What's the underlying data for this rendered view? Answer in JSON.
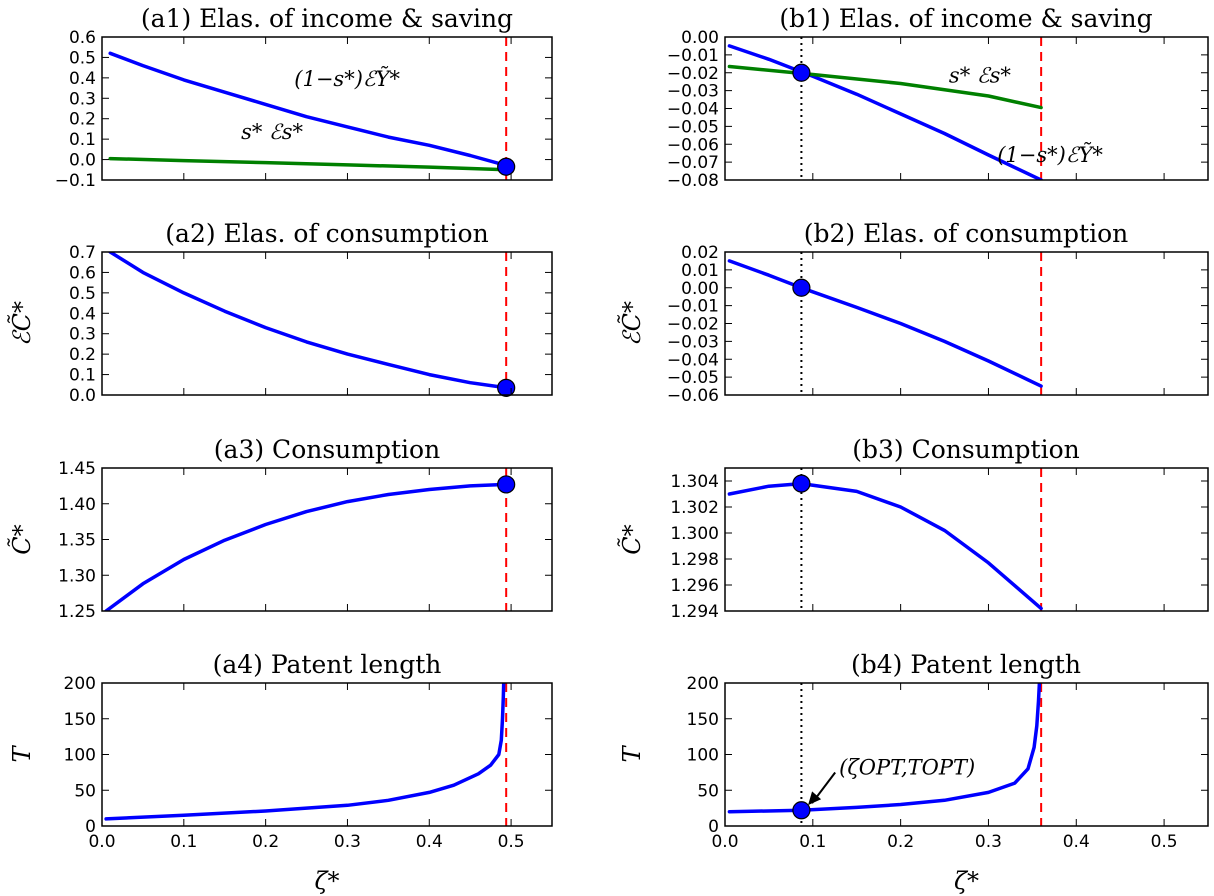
{
  "chart_data": [
    {
      "id": "a1",
      "type": "line",
      "title": "(a1) Elas. of income & saving",
      "xlim": [
        0,
        0.55
      ],
      "ylim": [
        -0.1,
        0.6
      ],
      "xticks": [],
      "yticks": [
        -0.1,
        0.0,
        0.1,
        0.2,
        0.3,
        0.4,
        0.5,
        0.6
      ],
      "ylabel": "",
      "xlabel": "",
      "series": [
        {
          "name": "(1−s*)ℰỸ*",
          "color": "#0000ff",
          "x": [
            0.01,
            0.05,
            0.1,
            0.15,
            0.2,
            0.25,
            0.3,
            0.35,
            0.4,
            0.45,
            0.495
          ],
          "y": [
            0.52,
            0.46,
            0.39,
            0.33,
            0.27,
            0.21,
            0.16,
            0.11,
            0.07,
            0.02,
            -0.03
          ]
        },
        {
          "name": "s* ℰs*",
          "color": "#008000",
          "x": [
            0.01,
            0.1,
            0.2,
            0.3,
            0.4,
            0.495
          ],
          "y": [
            0.005,
            -0.005,
            -0.015,
            -0.026,
            -0.037,
            -0.05
          ]
        }
      ],
      "vline_dashed": 0.494,
      "vline_dotted": null,
      "point": {
        "x": 0.494,
        "y": -0.035
      },
      "annotations": [
        {
          "text": "(1−s*)ℰỸ*",
          "x": 0.235,
          "y": 0.36
        },
        {
          "text": "s* ℰs*",
          "x": 0.17,
          "y": 0.1
        }
      ]
    },
    {
      "id": "b1",
      "type": "line",
      "title": "(b1) Elas. of income & saving",
      "xlim": [
        0,
        0.55
      ],
      "ylim": [
        -0.08,
        0.0
      ],
      "xticks": [],
      "yticks": [
        -0.08,
        -0.07,
        -0.06,
        -0.05,
        -0.04,
        -0.03,
        -0.02,
        -0.01,
        0.0
      ],
      "ylabel": "",
      "xlabel": "",
      "series": [
        {
          "name": "(1−s*)ℰỸ*",
          "color": "#0000ff",
          "x": [
            0.005,
            0.05,
            0.1,
            0.15,
            0.2,
            0.25,
            0.3,
            0.36
          ],
          "y": [
            -0.005,
            -0.0125,
            -0.022,
            -0.032,
            -0.043,
            -0.054,
            -0.066,
            -0.08
          ]
        },
        {
          "name": "s* ℰs*",
          "color": "#008000",
          "x": [
            0.005,
            0.1,
            0.2,
            0.3,
            0.36
          ],
          "y": [
            -0.0165,
            -0.021,
            -0.026,
            -0.033,
            -0.0395
          ]
        }
      ],
      "vline_dashed": 0.36,
      "vline_dotted": 0.087,
      "point": {
        "x": 0.087,
        "y": -0.02
      },
      "annotations": [
        {
          "text": "s* ℰs*",
          "x": 0.255,
          "y": -0.0255
        },
        {
          "text": "(1−s*)ℰỸ*",
          "x": 0.31,
          "y": -0.07
        }
      ]
    },
    {
      "id": "a2",
      "type": "line",
      "title": "(a2) Elas. of consumption",
      "xlim": [
        0,
        0.55
      ],
      "ylim": [
        0.0,
        0.7
      ],
      "xticks": [],
      "yticks": [
        0.0,
        0.1,
        0.2,
        0.3,
        0.4,
        0.5,
        0.6,
        0.7
      ],
      "ylabel": "ℰC̃*",
      "xlabel": "",
      "series": [
        {
          "name": "",
          "color": "#0000ff",
          "x": [
            0.01,
            0.05,
            0.1,
            0.15,
            0.2,
            0.25,
            0.3,
            0.35,
            0.4,
            0.45,
            0.495
          ],
          "y": [
            0.7,
            0.6,
            0.5,
            0.41,
            0.33,
            0.26,
            0.2,
            0.15,
            0.1,
            0.06,
            0.035
          ]
        }
      ],
      "vline_dashed": 0.494,
      "vline_dotted": null,
      "point": {
        "x": 0.494,
        "y": 0.035
      },
      "annotations": []
    },
    {
      "id": "b2",
      "type": "line",
      "title": "(b2) Elas. of consumption",
      "xlim": [
        0,
        0.55
      ],
      "ylim": [
        -0.06,
        0.02
      ],
      "xticks": [],
      "yticks": [
        -0.06,
        -0.05,
        -0.04,
        -0.03,
        -0.02,
        -0.01,
        0.0,
        0.01,
        0.02
      ],
      "ylabel": "ℰC̃*",
      "xlabel": "",
      "series": [
        {
          "name": "",
          "color": "#0000ff",
          "x": [
            0.005,
            0.05,
            0.087,
            0.15,
            0.2,
            0.25,
            0.3,
            0.36
          ],
          "y": [
            0.015,
            0.007,
            0.0,
            -0.011,
            -0.02,
            -0.03,
            -0.041,
            -0.055
          ]
        }
      ],
      "vline_dashed": 0.36,
      "vline_dotted": 0.087,
      "point": {
        "x": 0.087,
        "y": 0.0
      },
      "annotations": []
    },
    {
      "id": "a3",
      "type": "line",
      "title": "(a3) Consumption",
      "xlim": [
        0,
        0.55
      ],
      "ylim": [
        1.25,
        1.45
      ],
      "xticks": [],
      "yticks": [
        1.25,
        1.3,
        1.35,
        1.4,
        1.45
      ],
      "ylabel": "C̃*",
      "xlabel": "",
      "series": [
        {
          "name": "",
          "color": "#0000ff",
          "x": [
            0.005,
            0.05,
            0.1,
            0.15,
            0.2,
            0.25,
            0.3,
            0.35,
            0.4,
            0.45,
            0.494
          ],
          "y": [
            1.25,
            1.288,
            1.322,
            1.349,
            1.371,
            1.389,
            1.403,
            1.413,
            1.42,
            1.425,
            1.427
          ]
        }
      ],
      "vline_dashed": 0.494,
      "vline_dotted": null,
      "point": {
        "x": 0.494,
        "y": 1.427
      },
      "annotations": []
    },
    {
      "id": "b3",
      "type": "line",
      "title": "(b3) Consumption",
      "xlim": [
        0,
        0.55
      ],
      "ylim": [
        1.294,
        1.305
      ],
      "xticks": [],
      "yticks": [
        1.294,
        1.296,
        1.298,
        1.3,
        1.302,
        1.304
      ],
      "ylabel": "C̃*",
      "xlabel": "",
      "series": [
        {
          "name": "",
          "color": "#0000ff",
          "x": [
            0.005,
            0.05,
            0.087,
            0.15,
            0.2,
            0.25,
            0.3,
            0.36
          ],
          "y": [
            1.303,
            1.3036,
            1.3038,
            1.3032,
            1.302,
            1.3002,
            1.2977,
            1.2942
          ]
        }
      ],
      "vline_dashed": 0.36,
      "vline_dotted": 0.087,
      "point": {
        "x": 0.087,
        "y": 1.3038
      },
      "annotations": []
    },
    {
      "id": "a4",
      "type": "line",
      "title": "(a4) Patent length",
      "xlim": [
        0,
        0.55
      ],
      "ylim": [
        0,
        200
      ],
      "xticks": [
        0.0,
        0.1,
        0.2,
        0.3,
        0.4,
        0.5
      ],
      "yticks": [
        0,
        50,
        100,
        150,
        200
      ],
      "ylabel": "T",
      "xlabel": "ζ*",
      "series": [
        {
          "name": "",
          "color": "#0000ff",
          "x": [
            0.005,
            0.1,
            0.2,
            0.3,
            0.35,
            0.4,
            0.43,
            0.46,
            0.475,
            0.485,
            0.488,
            0.4895,
            0.4905,
            0.491
          ],
          "y": [
            10,
            15,
            21,
            29,
            36,
            47,
            57,
            73,
            85,
            100,
            120,
            150,
            180,
            200
          ]
        }
      ],
      "vline_dashed": 0.494,
      "vline_dotted": null,
      "point": null,
      "annotations": []
    },
    {
      "id": "b4",
      "type": "line",
      "title": "(b4) Patent length",
      "xlim": [
        0,
        0.55
      ],
      "ylim": [
        0,
        200
      ],
      "xticks": [
        0.0,
        0.1,
        0.2,
        0.3,
        0.4,
        0.5
      ],
      "yticks": [
        0,
        50,
        100,
        150,
        200
      ],
      "ylabel": "T",
      "xlabel": "ζ*",
      "series": [
        {
          "name": "",
          "color": "#0000ff",
          "x": [
            0.005,
            0.087,
            0.15,
            0.2,
            0.25,
            0.3,
            0.33,
            0.345,
            0.352,
            0.355,
            0.357,
            0.358
          ],
          "y": [
            20,
            22,
            26,
            30,
            36,
            47,
            60,
            80,
            110,
            140,
            175,
            200
          ]
        }
      ],
      "vline_dashed": 0.36,
      "vline_dotted": 0.087,
      "point": {
        "x": 0.087,
        "y": 22
      },
      "annotations": [
        {
          "text": "(ζOPT,TOPT)",
          "x": 0.13,
          "y": 72,
          "arrow_to": [
            0.09,
            25
          ]
        }
      ]
    }
  ],
  "colors": {
    "series_primary": "#0000ff",
    "series_secondary": "#008000",
    "dashed_line": "#ff0000",
    "dotted_line": "#000000",
    "marker": "#0000ff"
  }
}
